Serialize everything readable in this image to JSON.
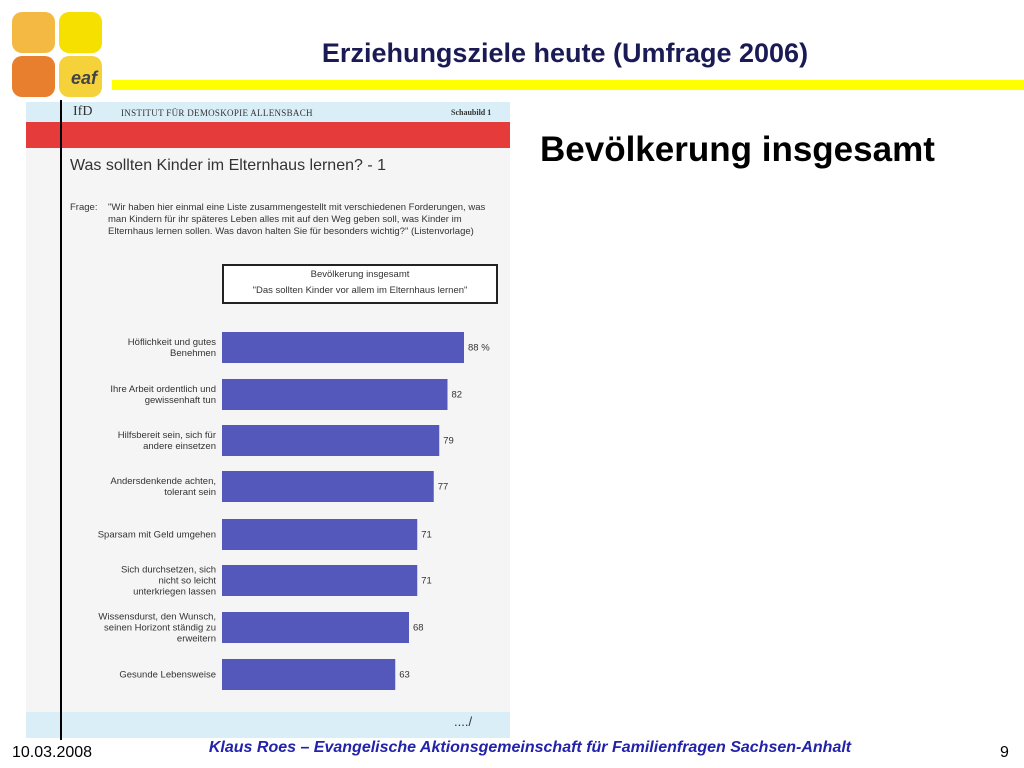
{
  "slide": {
    "title": "Erziehungsziele heute (Umfrage 2006)",
    "subtitle": "Bevölkerung insgesamt",
    "logo_text": "eaf",
    "logo_colors": [
      "#f4b942",
      "#f5e000",
      "#e87f2e",
      "#f5d23a"
    ],
    "accent_color": "#ffff00"
  },
  "figure": {
    "header_logo": "IfD",
    "header_institute": "INSTITUT FÜR DEMOSKOPIE ALLENSBACH",
    "header_schaubild": "Schaubild 1",
    "title": "Was sollten Kinder im Elternhaus lernen? - 1",
    "frage_label": "Frage:",
    "frage_text": "\"Wir haben hier einmal eine Liste zusammengestellt mit verschiedenen Forderungen, was man Kindern für ihr späteres Leben alles mit auf den Weg geben soll, was Kinder im Elternhaus lernen sollen. Was davon halten Sie für besonders wichtig?\" (Listenvorlage)",
    "legend_line1": "Bevölkerung insgesamt",
    "legend_line2": "\"Das sollten Kinder vor allem im Elternhaus lernen\"",
    "continued": "..../"
  },
  "chart_data": {
    "type": "bar",
    "orientation": "horizontal",
    "title": "Was sollten Kinder im Elternhaus lernen? - 1",
    "categories": [
      "Höflichkeit und gutes Benehmen",
      "Ihre Arbeit ordentlich und gewissenhaft tun",
      "Hilfsbereit sein, sich für andere einsetzen",
      "Andersdenkende achten, tolerant sein",
      "Sparsam mit Geld umgehen",
      "Sich durchsetzen, sich nicht so leicht unterkriegen lassen",
      "Wissensdurst, den Wunsch, seinen Horizont ständig zu erweitern",
      "Gesunde Lebensweise"
    ],
    "values": [
      88,
      82,
      79,
      77,
      71,
      71,
      68,
      63
    ],
    "value_labels": [
      "88 %",
      "82",
      "79",
      "77",
      "71",
      "71",
      "68",
      "63"
    ],
    "series": [
      {
        "name": "Bevölkerung insgesamt",
        "values": [
          88,
          82,
          79,
          77,
          71,
          71,
          68,
          63
        ]
      }
    ],
    "bar_color": "#5558bb",
    "xlim": [
      0,
      100
    ],
    "unit": "%"
  },
  "footer": {
    "date": "10.03.2008",
    "credit": "Klaus Roes – Evangelische Aktionsgemeinschaft für Familienfragen Sachsen-Anhalt",
    "page": "9"
  }
}
